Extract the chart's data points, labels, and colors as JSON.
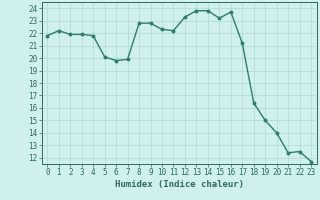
{
  "x": [
    0,
    1,
    2,
    3,
    4,
    5,
    6,
    7,
    8,
    9,
    10,
    11,
    12,
    13,
    14,
    15,
    16,
    17,
    18,
    19,
    20,
    21,
    22,
    23
  ],
  "y": [
    21.8,
    22.2,
    21.9,
    21.9,
    21.8,
    20.1,
    19.8,
    19.9,
    22.8,
    22.8,
    22.3,
    22.2,
    23.3,
    23.8,
    23.8,
    23.2,
    23.7,
    21.2,
    16.4,
    15.0,
    14.0,
    12.4,
    12.5,
    11.7
  ],
  "line_color": "#2e7d6e",
  "marker": "o",
  "marker_size": 1.8,
  "linewidth": 1.0,
  "xlabel": "Humidex (Indice chaleur)",
  "xlim": [
    -0.5,
    23.5
  ],
  "ylim": [
    11.5,
    24.5
  ],
  "yticks": [
    12,
    13,
    14,
    15,
    16,
    17,
    18,
    19,
    20,
    21,
    22,
    23,
    24
  ],
  "xticks": [
    0,
    1,
    2,
    3,
    4,
    5,
    6,
    7,
    8,
    9,
    10,
    11,
    12,
    13,
    14,
    15,
    16,
    17,
    18,
    19,
    20,
    21,
    22,
    23
  ],
  "bg_color": "#cff0ee",
  "grid_color": "#b0d8d0",
  "line_label_color": "#2e6b5e",
  "xlabel_fontsize": 6.5,
  "tick_fontsize": 5.5
}
